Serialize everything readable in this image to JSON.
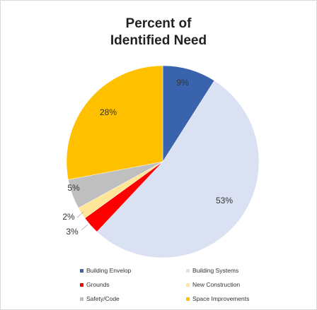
{
  "chart_data": {
    "type": "pie",
    "title_lines": [
      "Percent of",
      "Identified Need"
    ],
    "categories": [
      "Building Envelop",
      "Building Systems",
      "Grounds",
      "New Construction",
      "Safety/Code",
      "Space Improvements"
    ],
    "values": [
      9,
      53,
      3,
      2,
      5,
      28
    ],
    "data_labels": [
      "9%",
      "53%",
      "3%",
      "2%",
      "5%",
      "28%"
    ],
    "colors": [
      "#3a63ad",
      "#d9e1f2",
      "#ff0000",
      "#ffe699",
      "#bfbfbf",
      "#ffc000"
    ],
    "legend_position": "bottom",
    "start_angle_deg": 0,
    "direction": "clockwise"
  }
}
